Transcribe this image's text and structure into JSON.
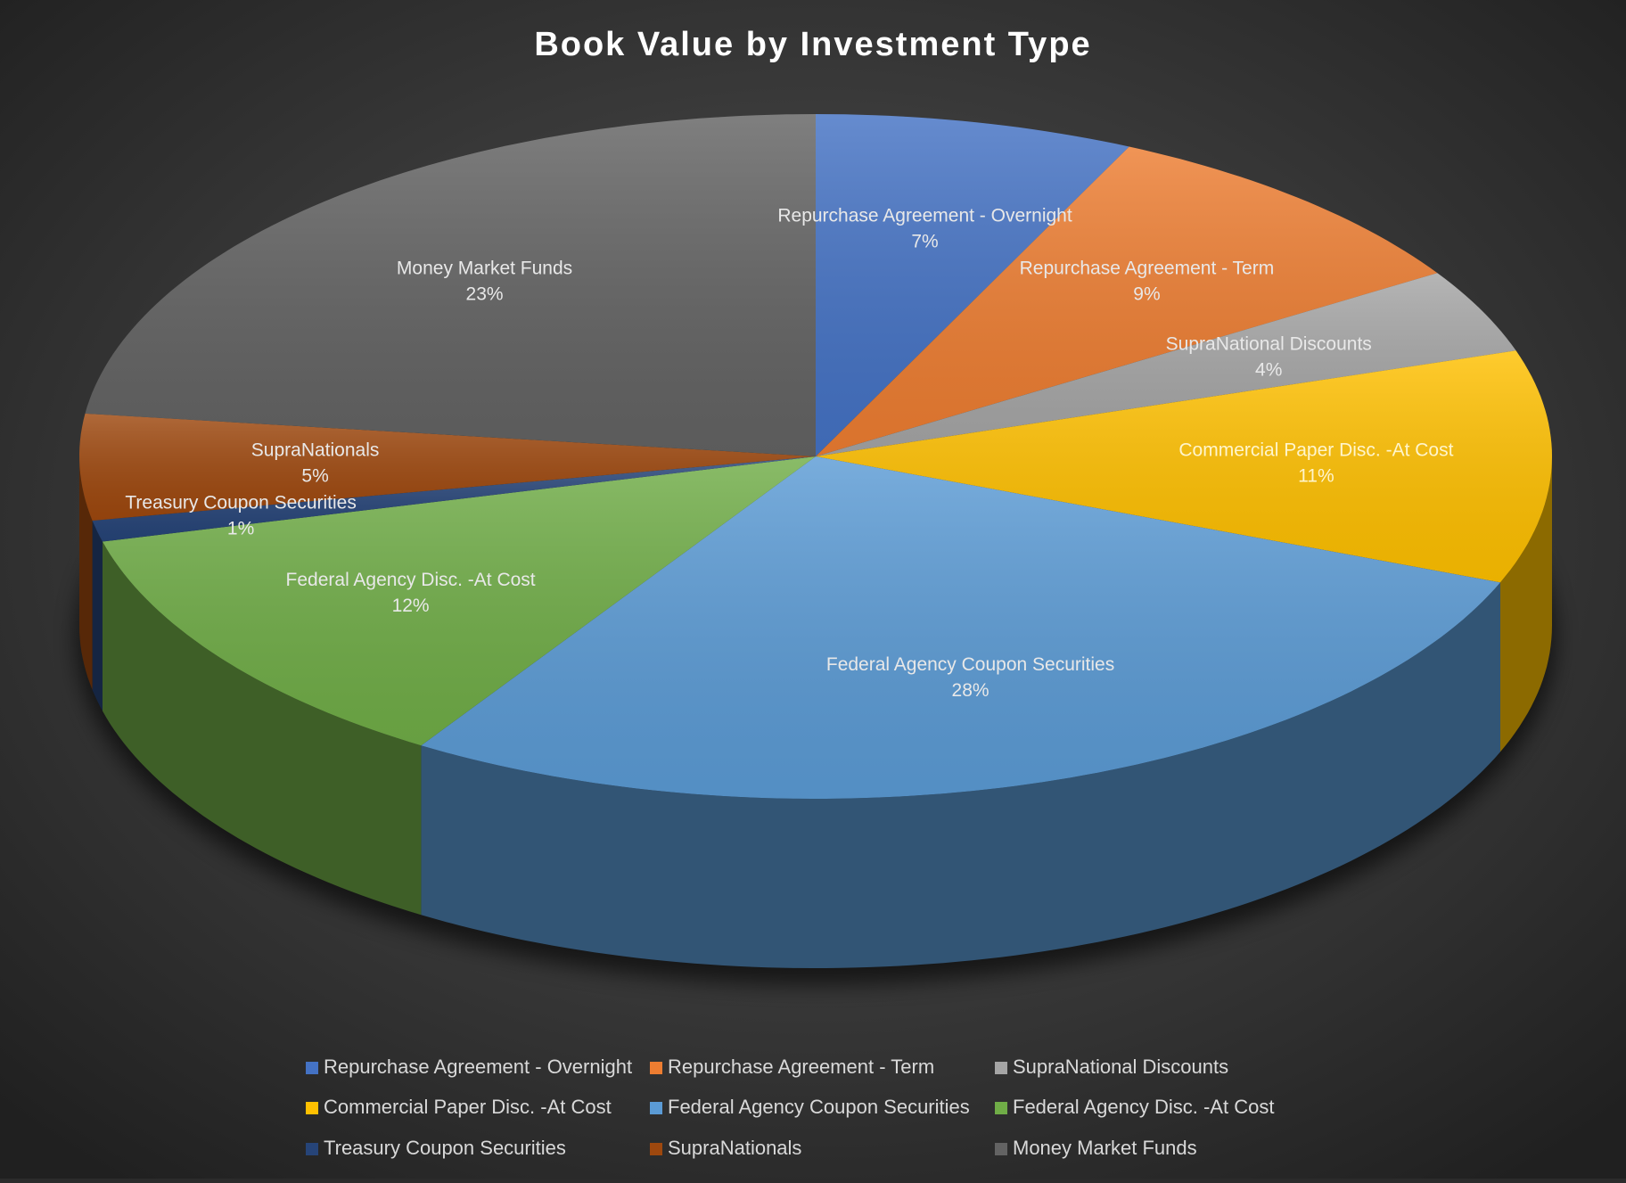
{
  "chart_data": {
    "type": "pie",
    "title": "Book Value by Investment Type",
    "categories": [
      "Repurchase Agreement - Overnight",
      "Repurchase Agreement - Term",
      "SupraNational Discounts",
      "Commercial Paper Disc. -At Cost",
      "Federal Agency Coupon Securities",
      "Federal Agency Disc. -At Cost",
      "Treasury Coupon Securities",
      "SupraNationals",
      "Money Market Funds"
    ],
    "values": [
      7,
      9,
      4,
      11,
      28,
      12,
      1,
      5,
      23
    ],
    "value_labels": [
      "7%",
      "9%",
      "4%",
      "11%",
      "28%",
      "12%",
      "1%",
      "5%",
      "23%"
    ],
    "colors": [
      "#4472c4",
      "#ed7d31",
      "#a5a5a5",
      "#ffc000",
      "#5b9bd5",
      "#70ad47",
      "#264478",
      "#9e480e",
      "#636363"
    ],
    "legend": "bottom"
  }
}
